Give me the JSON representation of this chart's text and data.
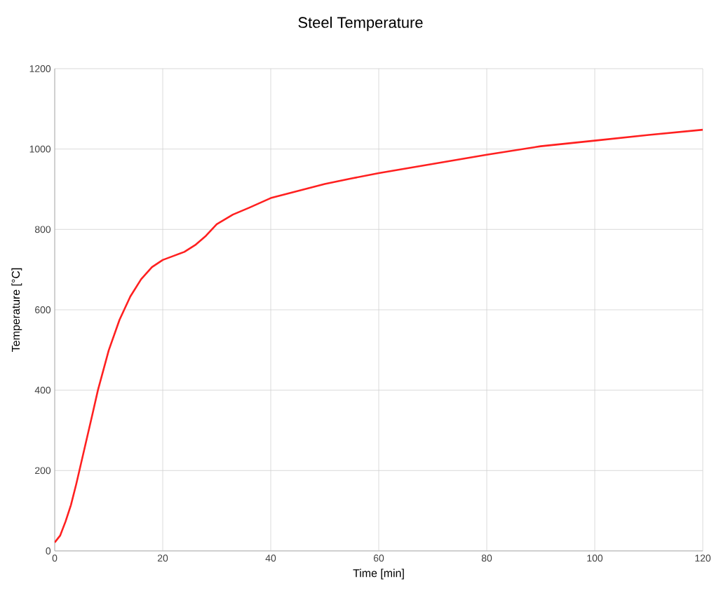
{
  "chart_data": {
    "type": "line",
    "title": "Steel Temperature",
    "xlabel": "Time [min]",
    "ylabel": "Temperature [°C]",
    "xlim": [
      0,
      120
    ],
    "ylim": [
      0,
      1200
    ],
    "xticks": [
      0,
      20,
      40,
      60,
      80,
      100,
      120
    ],
    "yticks": [
      0,
      200,
      400,
      600,
      800,
      1000,
      1200
    ],
    "grid": true,
    "marker": "none",
    "line_style": "solid",
    "series": [
      {
        "color": "#ff2020",
        "x": [
          0,
          1,
          2,
          3,
          4,
          5,
          6,
          7,
          8,
          10,
          12,
          14,
          16,
          18,
          20,
          22,
          24,
          26,
          28,
          30,
          33,
          36,
          40,
          50,
          55,
          60,
          70,
          80,
          90,
          100,
          110,
          120
        ],
        "values": [
          21,
          38,
          73,
          114,
          167,
          225,
          283,
          341,
          400,
          499,
          575,
          633,
          676,
          706,
          724,
          734,
          744,
          761,
          784,
          813,
          837,
          854,
          878,
          913,
          927,
          940,
          963,
          986,
          1007,
          1021,
          1035,
          1048
        ]
      }
    ]
  }
}
